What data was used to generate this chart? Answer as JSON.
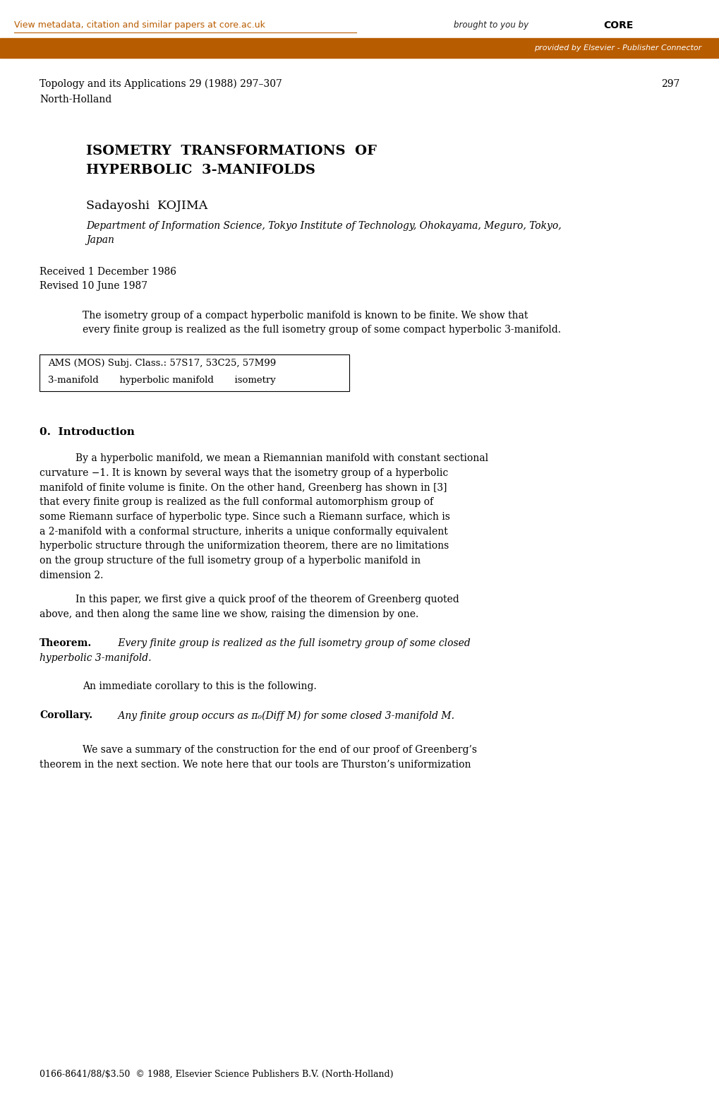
{
  "bg_color": "#ffffff",
  "header_bar_color": "#B85C00",
  "header_top_text": "View metadata, citation and similar papers at core.ac.uk",
  "header_top_text_color": "#B85C00",
  "header_bar_right_text": "provided by Elsevier - Publisher Connector",
  "header_bar_right_text_color": "#ffffff",
  "journal_line1": "Topology and its Applications 29 (1988) 297–307",
  "journal_line2": "North-Holland",
  "page_number": "297",
  "title_line1": "ISOMETRY  TRANSFORMATIONS  OF",
  "title_line2": "HYPERBOLIC  3-MANIFOLDS",
  "author": "Sadayoshi  KOJIMA",
  "affiliation_line1": "Department of Information Science, Tokyo Institute of Technology, Ohokayama, Meguro, Tokyo,",
  "affiliation_line2": "Japan",
  "received": "Received 1 December 1986",
  "revised": "Revised 10 June 1987",
  "abstract_line1": "The isometry group of a compact hyperbolic manifold is known to be finite. We show that",
  "abstract_line2": "every finite group is realized as the full isometry group of some compact hyperbolic 3-manifold.",
  "box_line1": "AMS (MOS) Subj. Class.: 57S17, 53C25, 57M99",
  "box_line2": "3-manifold       hyperbolic manifold       isometry",
  "section_title": "0.  Introduction",
  "para1_line1": "By a hyperbolic manifold, we mean a Riemannian manifold with constant sectional",
  "para1_line2": "curvature −1. It is known by several ways that the isometry group of a hyperbolic",
  "para1_line3": "manifold of finite volume is finite. On the other hand, Greenberg has shown in [3]",
  "para1_line4": "that every finite group is realized as the full conformal automorphism group of",
  "para1_line5": "some Riemann surface of hyperbolic type. Since such a Riemann surface, which is",
  "para1_line6": "a 2-manifold with a conformal structure, inherits a unique conformally equivalent",
  "para1_line7": "hyperbolic structure through the uniformization theorem, there are no limitations",
  "para1_line8": "on the group structure of the full isometry group of a hyperbolic manifold in",
  "para1_line9": "dimension 2.",
  "para2_line1": "In this paper, we first give a quick proof of the theorem of Greenberg quoted",
  "para2_line2": "above, and then along the same line we show, raising the dimension by one.",
  "theorem_label": "Theorem.",
  "theorem_text": " Every finite group is realized as the full isometry group of some closed",
  "theorem_text2": "hyperbolic 3-manifold.",
  "corollary_intro": "An immediate corollary to this is the following.",
  "corollary_label": "Corollary.",
  "corollary_text": " Any finite group occurs as π₀(Diff M) for some closed 3-manifold M.",
  "final_line1": "We save a summary of the construction for the end of our proof of Greenberg’s",
  "final_line2": "theorem in the next section. We note here that our tools are Thurston’s uniformization",
  "footer": "0166-8641/88/$3.50  © 1988, Elsevier Science Publishers B.V. (North-Holland)"
}
